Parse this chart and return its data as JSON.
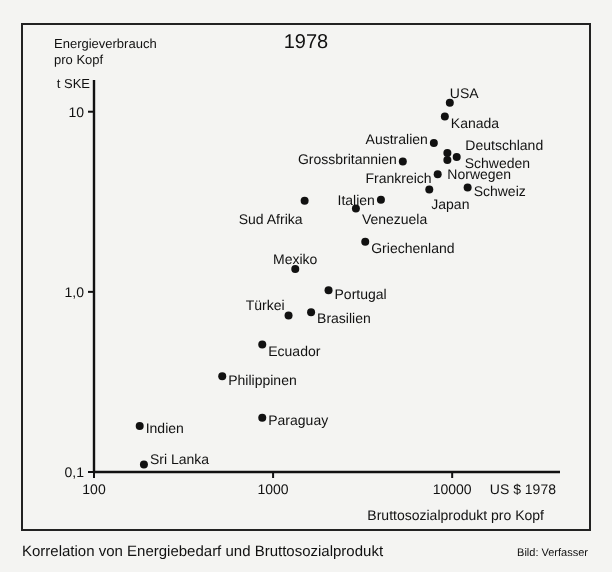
{
  "chart_data": {
    "type": "scatter",
    "title": "1978",
    "xlabel": "Bruttosozialprodukt pro Kopf",
    "ylabel": "Energieverbrauch pro Kopf",
    "log": "xy",
    "grid": false,
    "marker": "circle",
    "xlim": [
      100,
      40000
    ],
    "xticks": [
      100,
      1000,
      10000
    ],
    "ylim": [
      0.1,
      15
    ],
    "yticks": [
      {
        "value": 0.1,
        "label": "0,1"
      },
      {
        "value": 1,
        "label": "1,0"
      },
      10
    ],
    "series": [
      {
        "color": "#111111",
        "x": [
          9700,
          9100,
          7900,
          9400,
          10600,
          9400,
          5300,
          8300,
          12200,
          7450,
          4000,
          1500,
          2900,
          3270,
          1330,
          2040,
          1220,
          1630,
          870,
          520,
          870,
          180,
          190
        ],
        "values": [
          11.2,
          9.4,
          6.7,
          5.9,
          5.6,
          5.4,
          5.3,
          4.5,
          3.8,
          3.7,
          3.25,
          3.2,
          2.9,
          1.9,
          1.34,
          1.02,
          0.74,
          0.77,
          0.51,
          0.34,
          0.2,
          0.18,
          0.11
        ]
      }
    ],
    "annotations": [
      {
        "text": "USA",
        "x": 9700,
        "y": 11.2
      },
      {
        "text": "Kanada",
        "x": 9100,
        "y": 9.4
      },
      {
        "text": "Australien",
        "x": 7900,
        "y": 6.7
      },
      {
        "text": "Deutschland",
        "x": 9400,
        "y": 5.9
      },
      {
        "text": "Schweden",
        "x": 10600,
        "y": 5.6
      },
      {
        "text": "Norwegen",
        "x": 9400,
        "y": 5.4
      },
      {
        "text": "Grossbritannien",
        "x": 5300,
        "y": 5.3
      },
      {
        "text": "Frankreich",
        "x": 8300,
        "y": 4.5
      },
      {
        "text": "Schweiz",
        "x": 12200,
        "y": 3.8
      },
      {
        "text": "Japan",
        "x": 7450,
        "y": 3.7
      },
      {
        "text": "Italien",
        "x": 4000,
        "y": 3.25
      },
      {
        "text": "Sud Afrika",
        "x": 1500,
        "y": 3.2
      },
      {
        "text": "Venezuela",
        "x": 2900,
        "y": 2.9
      },
      {
        "text": "Griechenland",
        "x": 3270,
        "y": 1.9
      },
      {
        "text": "Mexiko",
        "x": 1330,
        "y": 1.34
      },
      {
        "text": "Portugal",
        "x": 2040,
        "y": 1.02
      },
      {
        "text": "Türkei",
        "x": 1220,
        "y": 0.74
      },
      {
        "text": "Brasilien",
        "x": 1630,
        "y": 0.77
      },
      {
        "text": "Ecuador",
        "x": 870,
        "y": 0.51
      },
      {
        "text": "Philippinen",
        "x": 520,
        "y": 0.34
      },
      {
        "text": "Paraguay",
        "x": 870,
        "y": 0.2
      },
      {
        "text": "Indien",
        "x": 180,
        "y": 0.18
      },
      {
        "text": "Sri Lanka",
        "x": 190,
        "y": 0.11
      },
      "t SKE",
      "US $ 1978",
      "Korrelation von Energiebedarf und Bruttosozialprodukt",
      "Bild: Verfasser"
    ]
  }
}
